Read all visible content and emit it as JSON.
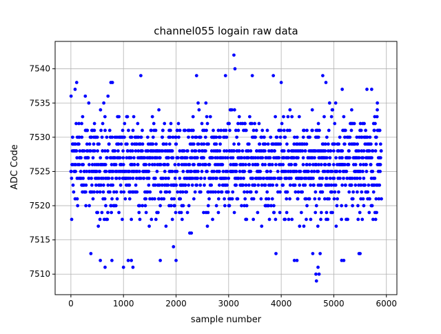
{
  "chart_data": {
    "type": "scatter",
    "title": "channel055 logain raw data",
    "xlabel": "sample number",
    "ylabel": "ADC Code",
    "xlim": [
      -300,
      6200
    ],
    "ylim": [
      7507,
      7544
    ],
    "x_ticks": [
      0,
      1000,
      2000,
      3000,
      4000,
      5000,
      6000
    ],
    "x_tick_labels": [
      "0",
      "1000",
      "2000",
      "3000",
      "4000",
      "5000",
      "6000"
    ],
    "y_ticks": [
      7510,
      7515,
      7520,
      7525,
      7530,
      7535,
      7540
    ],
    "y_tick_labels": [
      "7510",
      "7515",
      "7520",
      "7525",
      "7530",
      "7535",
      "7540"
    ],
    "grid": true,
    "marker_color": "#0000ff",
    "series": [
      {
        "points_note": "~5900 samples, integer ADC codes mostly 7515-7535, mean ~7526",
        "x_range": [
          0,
          5900
        ],
        "dense_band": [
          7517,
          7533
        ],
        "outliers": [
          [
            3100,
            7542
          ],
          [
            3120,
            7540
          ],
          [
            1330,
            7539
          ],
          [
            2390,
            7539
          ],
          [
            2940,
            7539
          ],
          [
            3450,
            7539
          ],
          [
            3850,
            7539
          ],
          [
            4790,
            7539
          ],
          [
            80,
            7537
          ],
          [
            110,
            7538
          ],
          [
            760,
            7538
          ],
          [
            790,
            7538
          ],
          [
            4000,
            7538
          ],
          [
            4850,
            7538
          ],
          [
            5160,
            7537
          ],
          [
            5630,
            7537
          ],
          [
            5720,
            7537
          ],
          [
            1000,
            7511
          ],
          [
            1090,
            7512
          ],
          [
            1150,
            7512
          ],
          [
            1180,
            7511
          ],
          [
            650,
            7511
          ],
          [
            560,
            7512
          ],
          [
            780,
            7512
          ],
          [
            2000,
            7512
          ],
          [
            1700,
            7512
          ],
          [
            4300,
            7512
          ],
          [
            4660,
            7510
          ],
          [
            4720,
            7510
          ],
          [
            4670,
            7509
          ],
          [
            5150,
            7512
          ],
          [
            5190,
            7512
          ],
          [
            5480,
            7513
          ],
          [
            5500,
            7513
          ],
          [
            3900,
            7513
          ],
          [
            380,
            7513
          ],
          [
            4250,
            7512
          ],
          [
            4600,
            7513
          ],
          [
            4700,
            7511
          ],
          [
            4740,
            7513
          ]
        ]
      }
    ]
  }
}
